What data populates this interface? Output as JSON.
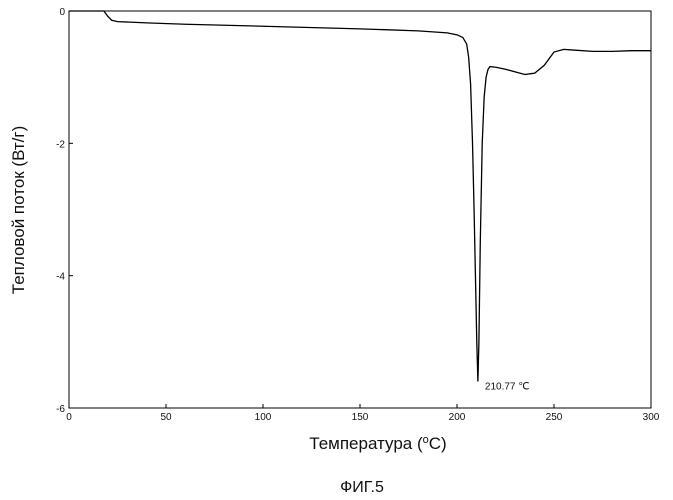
{
  "chart_data": {
    "type": "line",
    "xlabel": "Температура (",
    "xlabel_sup": "o",
    "xlabel_suffix": "C)",
    "ylabel": "Тепловой поток (Вт/г)",
    "xlim": [
      0,
      300
    ],
    "ylim": [
      -6,
      0
    ],
    "x_ticks": [
      0,
      50,
      100,
      150,
      200,
      250,
      300
    ],
    "y_ticks": [
      0,
      -2,
      -4,
      -6
    ],
    "grid": false,
    "series": [
      {
        "x": [
          0,
          18,
          20,
          22,
          25,
          40,
          60,
          100,
          150,
          180,
          195,
          200,
          203,
          205,
          206,
          207,
          208,
          208.8,
          209.5,
          210.2,
          210.77,
          211.3,
          212,
          213,
          214,
          215,
          216,
          217,
          220,
          225,
          230,
          235,
          240,
          245,
          248,
          250,
          255,
          260,
          270,
          280,
          290,
          300
        ],
        "y": [
          0,
          0,
          -0.08,
          -0.14,
          -0.16,
          -0.18,
          -0.2,
          -0.23,
          -0.27,
          -0.3,
          -0.33,
          -0.36,
          -0.4,
          -0.5,
          -0.7,
          -1.1,
          -2.0,
          -3.0,
          -4.0,
          -5.0,
          -5.6,
          -5.0,
          -3.5,
          -2.0,
          -1.3,
          -1.0,
          -0.88,
          -0.84,
          -0.85,
          -0.88,
          -0.92,
          -0.96,
          -0.94,
          -0.82,
          -0.7,
          -0.62,
          -0.58,
          -0.59,
          -0.61,
          -0.61,
          -0.6,
          -0.6
        ]
      }
    ],
    "annotations": [
      {
        "text": "210.77 ℃",
        "x": 210.77,
        "y": -5.6
      }
    ]
  },
  "caption": "ФИГ.5"
}
